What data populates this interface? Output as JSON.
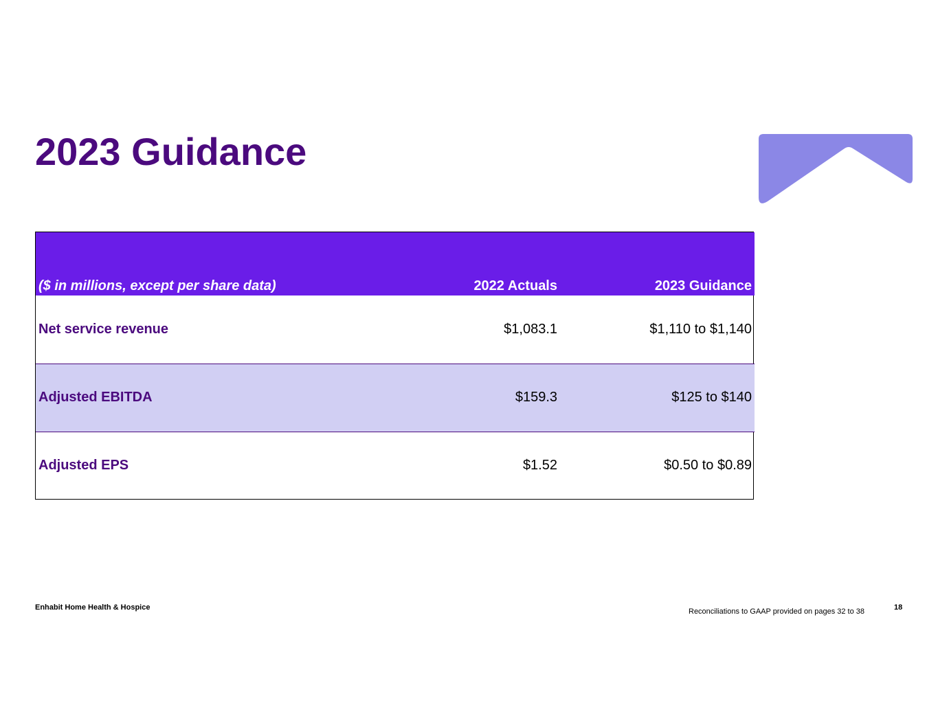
{
  "slide": {
    "title": "2023 Guidance",
    "brand_color": "#4B0A7E",
    "accent_color": "#6A1DE8",
    "shade_color": "#D1CFF3",
    "logo_color": "#8B87E6",
    "logo_icon": "chevron-shape-icon"
  },
  "table": {
    "header": {
      "label": "($ in millions, except per share data)",
      "col1": "2022 Actuals",
      "col2": "2023 Guidance"
    },
    "rows": [
      {
        "label": "Net service revenue",
        "actual": "$1,083.1",
        "guidance": "$1,110 to $1,140"
      },
      {
        "label": "Adjusted EBITDA",
        "actual": "$159.3",
        "guidance": "$125 to $140"
      },
      {
        "label": "Adjusted EPS",
        "actual": "$1.52",
        "guidance": "$0.50 to $0.89"
      }
    ]
  },
  "footer": {
    "company": "Enhabit Home Health & Hospice",
    "note": "Reconciliations to GAAP provided on pages 32 to 38",
    "page_number": "18"
  }
}
